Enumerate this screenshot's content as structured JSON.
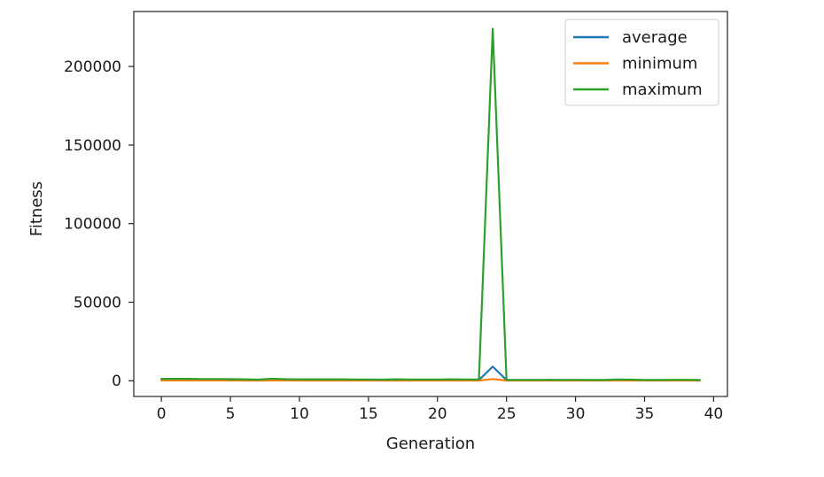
{
  "chart_data": {
    "type": "line",
    "title": "",
    "xlabel": "Generation",
    "ylabel": "Fitness",
    "xlim": [
      -2,
      41
    ],
    "ylim": [
      -10000,
      235000
    ],
    "xticks": [
      0,
      5,
      10,
      15,
      20,
      25,
      30,
      35,
      40
    ],
    "xtick_labels": [
      "0",
      "5",
      "10",
      "15",
      "20",
      "25",
      "30",
      "35",
      "40"
    ],
    "yticks": [
      0,
      50000,
      100000,
      150000,
      200000
    ],
    "ytick_labels": [
      "0",
      "50000",
      "100000",
      "150000",
      "200000"
    ],
    "grid": false,
    "legend_position": "top-right",
    "x": [
      0,
      1,
      2,
      3,
      4,
      5,
      6,
      7,
      8,
      9,
      10,
      11,
      12,
      13,
      14,
      15,
      16,
      17,
      18,
      19,
      20,
      21,
      22,
      23,
      24,
      25,
      26,
      27,
      28,
      29,
      30,
      31,
      32,
      33,
      34,
      35,
      36,
      37,
      38,
      39
    ],
    "series": [
      {
        "name": "average",
        "color": "#1f77b4",
        "values": [
          600,
          600,
          600,
          600,
          600,
          600,
          500,
          450,
          550,
          550,
          550,
          550,
          500,
          550,
          500,
          500,
          450,
          500,
          500,
          450,
          500,
          450,
          450,
          450,
          9000,
          450,
          400,
          400,
          400,
          400,
          350,
          350,
          350,
          400,
          350,
          300,
          350,
          300,
          300,
          250
        ]
      },
      {
        "name": "minimum",
        "color": "#ff7f0e",
        "values": [
          200,
          200,
          200,
          200,
          200,
          200,
          150,
          150,
          200,
          200,
          150,
          150,
          150,
          150,
          150,
          150,
          150,
          150,
          150,
          150,
          150,
          150,
          150,
          150,
          1100,
          150,
          150,
          150,
          150,
          150,
          100,
          100,
          100,
          100,
          100,
          100,
          100,
          100,
          100,
          100
        ]
      },
      {
        "name": "maximum",
        "color": "#2ca02c",
        "values": [
          1200,
          1200,
          1200,
          1100,
          1100,
          1000,
          900,
          700,
          1300,
          1000,
          900,
          900,
          900,
          900,
          800,
          800,
          700,
          900,
          800,
          800,
          800,
          900,
          800,
          800,
          224000,
          500,
          500,
          500,
          600,
          500,
          600,
          500,
          500,
          800,
          700,
          500,
          500,
          600,
          600,
          500
        ]
      }
    ]
  }
}
